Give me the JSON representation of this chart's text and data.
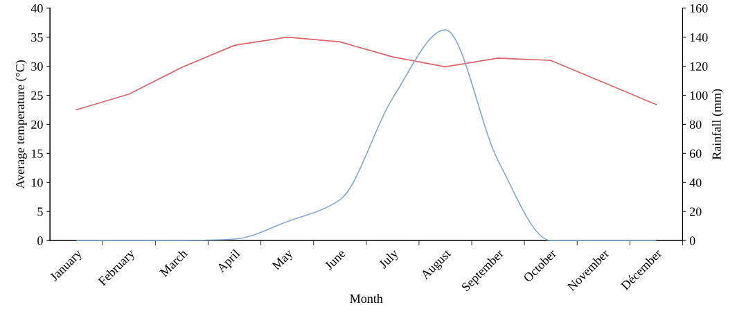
{
  "chart_data": {
    "type": "line",
    "xlabel": "Month",
    "ylabel": "Average temperature (°C)",
    "y2label": "Rainfall (mm)",
    "categories": [
      "January",
      "February",
      "March",
      "April",
      "May",
      "June",
      "July",
      "August",
      "September",
      "October",
      "November",
      "Décember"
    ],
    "series": [
      {
        "color": "#d9656b",
        "values": [
          22.5,
          25.2,
          29.8,
          33.6,
          35.0,
          34.2,
          31.6,
          29.9,
          31.4,
          31.0,
          27.2,
          23.4
        ]
      },
      {
        "color": "#86a8cc",
        "axis": "y2",
        "values": [
          0,
          0,
          0,
          1,
          13,
          28,
          98,
          145,
          55,
          0,
          0,
          0
        ]
      }
    ],
    "ylim": [
      0,
      40
    ],
    "yticks": [
      0,
      5,
      10,
      15,
      20,
      25,
      30,
      35,
      40
    ],
    "y2lim": [
      0,
      160
    ],
    "y2ticks": [
      0,
      20,
      40,
      60,
      80,
      100,
      120,
      140,
      160
    ],
    "grid": false,
    "legend": false,
    "marker": "none",
    "line_style": "solid"
  }
}
